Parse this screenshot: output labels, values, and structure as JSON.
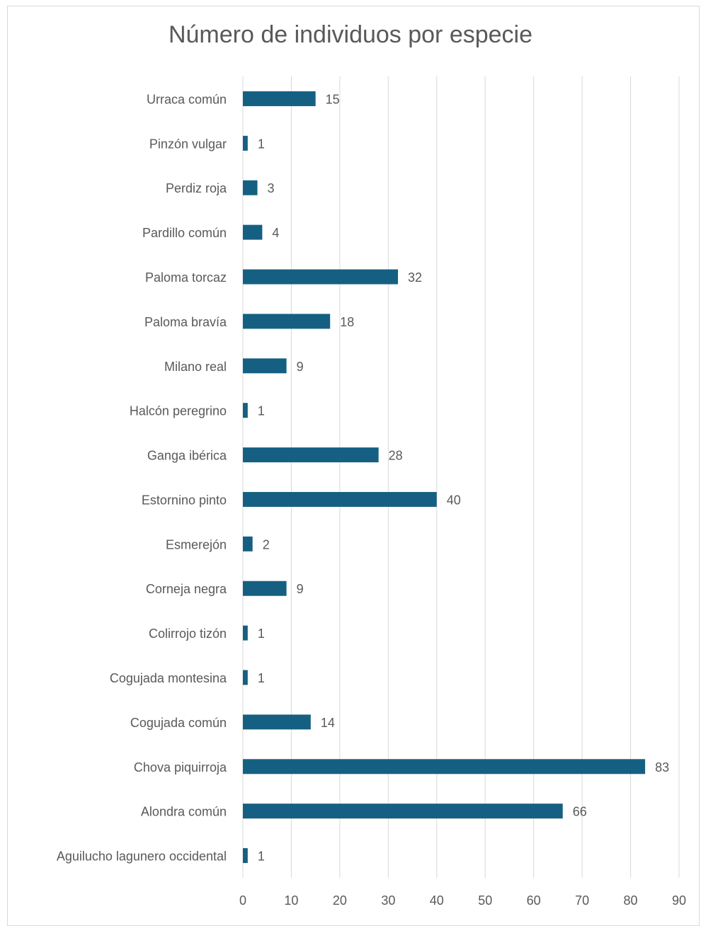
{
  "chart_data": {
    "type": "bar",
    "orientation": "horizontal",
    "title": "Número de individuos por especie",
    "xlabel": "",
    "ylabel": "",
    "xlim": [
      0,
      90
    ],
    "x_ticks": [
      0,
      10,
      20,
      30,
      40,
      50,
      60,
      70,
      80,
      90
    ],
    "grid": "vertical",
    "legend": "none",
    "bar_color": "#156082",
    "categories": [
      "Urraca común",
      "Pinzón vulgar",
      "Perdiz roja",
      "Pardillo común",
      "Paloma torcaz",
      "Paloma bravía",
      "Milano real",
      "Halcón peregrino",
      "Ganga ibérica",
      "Estornino pinto",
      "Esmerejón",
      "Corneja negra",
      "Colirrojo tizón",
      "Cogujada montesina",
      "Cogujada común",
      "Chova piquirroja",
      "Alondra común",
      "Aguilucho lagunero occidental"
    ],
    "values": [
      15,
      1,
      3,
      4,
      32,
      18,
      9,
      1,
      28,
      40,
      2,
      9,
      1,
      1,
      14,
      83,
      66,
      1
    ]
  }
}
